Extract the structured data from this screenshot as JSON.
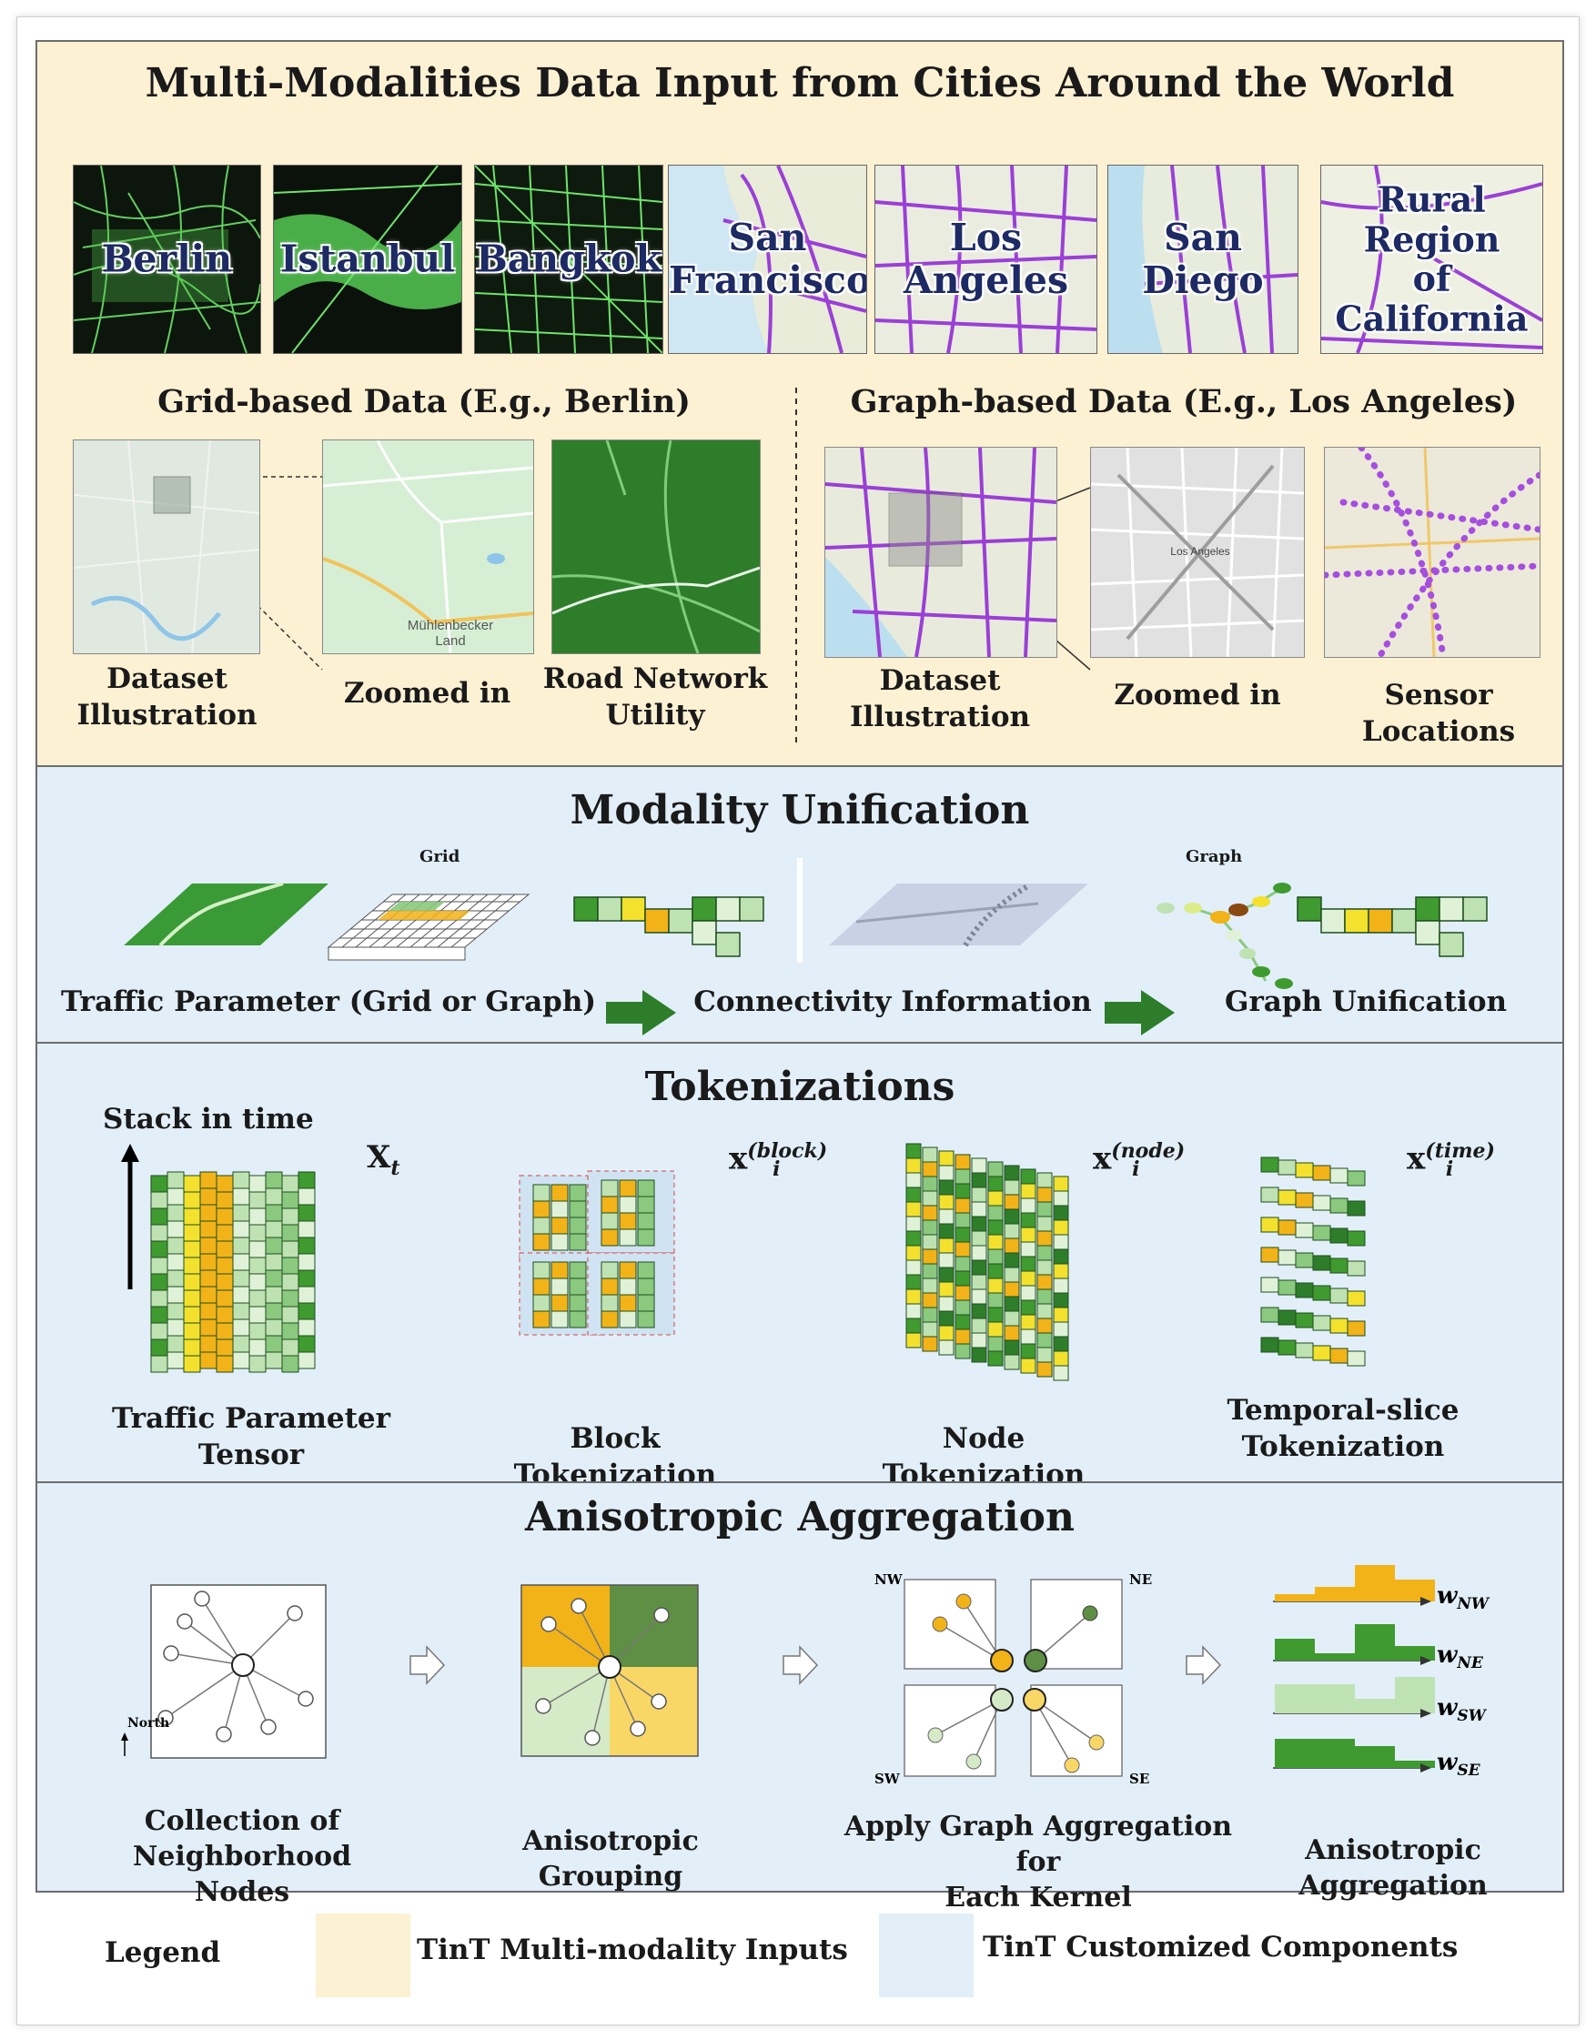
{
  "panel1": {
    "title": "Multi-Modalities Data Input from Cities Around the World",
    "cities": [
      "Berlin",
      "Istanbul",
      "Bangkok",
      "San\nFrancisco",
      "Los Angeles",
      "San Diego",
      "Rural Region\nof California"
    ],
    "grid_heading": "Grid-based Data (E.g., Berlin)",
    "graph_heading": "Graph-based Data (E.g., Los Angeles)",
    "grid_labels": [
      "Dataset\nIllustration",
      "Zoomed in",
      "Road Network\nUtility"
    ],
    "graph_labels": [
      "Dataset\nIllustration",
      "Zoomed in",
      "Sensor Locations"
    ],
    "map_text": {
      "muhlenbecker": "Mühlenbecker\nLand",
      "los_angeles_small": "Los Angeles"
    }
  },
  "panel2": {
    "title": "Modality Unification",
    "grid_tag": "Grid",
    "graph_tag": "Graph",
    "steps": [
      "Traffic Parameter (Grid or Graph)",
      "Connectivity Information",
      "Graph Unification"
    ]
  },
  "panel3": {
    "title": "Tokenizations",
    "stack_label": "Stack in time",
    "labels": [
      "Traffic Parameter\nTensor",
      "Block Tokenization",
      "Node Tokenization",
      "Temporal-slice\nTokenization"
    ],
    "math": {
      "xt_base": "X",
      "xt_sub": "t",
      "xi_base": "x",
      "xi_sub": "i",
      "block_sup": "(block)",
      "node_sup": "(node)",
      "time_sup": "(time)"
    }
  },
  "panel4": {
    "title": "Anisotropic Aggregation",
    "north": "North",
    "directions": [
      "NW",
      "NE",
      "SW",
      "SE"
    ],
    "labels": [
      "Collection of\nNeighborhood Nodes",
      "Anisotropic Grouping",
      "Apply Graph Aggregation for\nEach Kernel",
      "Anisotropic Aggregation"
    ],
    "weights": [
      {
        "base": "w",
        "sub": "NW",
        "values": [
          1,
          2,
          5,
          3
        ],
        "color": "#f2b318"
      },
      {
        "base": "w",
        "sub": "NE",
        "values": [
          3,
          1,
          5,
          2
        ],
        "color": "#3f9a2f"
      },
      {
        "base": "w",
        "sub": "SW",
        "values": [
          4,
          4,
          2,
          5
        ],
        "color": "#bfe2b3"
      },
      {
        "base": "w",
        "sub": "SE",
        "values": [
          4,
          4,
          3,
          1
        ],
        "color": "#3f9a2f"
      }
    ]
  },
  "legend": {
    "title": "Legend",
    "items": [
      {
        "label": "TinT Multi-modality Inputs",
        "color": "#fdf1d3"
      },
      {
        "label": "TinT Customized Components",
        "color": "#e2eff9"
      }
    ]
  }
}
